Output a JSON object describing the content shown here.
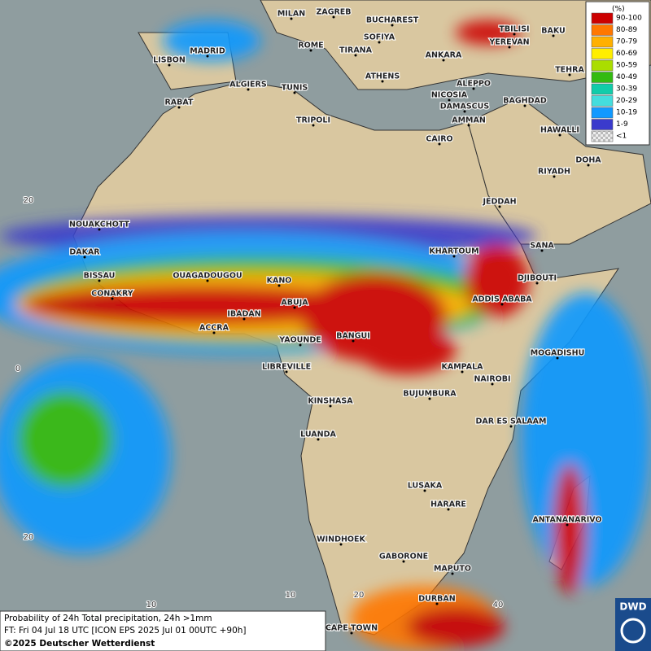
{
  "legend": {
    "unit": "(%)",
    "items": [
      {
        "label": "90-100",
        "color": "#cc0000"
      },
      {
        "label": "80-89",
        "color": "#ff7700"
      },
      {
        "label": "70-79",
        "color": "#ffb000"
      },
      {
        "label": "60-69",
        "color": "#ffee00"
      },
      {
        "label": "50-59",
        "color": "#aadd00"
      },
      {
        "label": "40-49",
        "color": "#33bb11"
      },
      {
        "label": "30-39",
        "color": "#11ccaa"
      },
      {
        "label": "20-29",
        "color": "#44dddd"
      },
      {
        "label": "10-19",
        "color": "#1199ff"
      },
      {
        "label": "1-9",
        "color": "#3a3acc"
      },
      {
        "label": "<1",
        "color": "#cccccc"
      }
    ]
  },
  "cities": [
    "MILAN",
    "ZAGREB",
    "BUCHAREST",
    "SOFIYA",
    "ROME",
    "TIRANA",
    "ANKARA",
    "TBILISI",
    "BAKU",
    "YEREVAN",
    "MADRID",
    "LISBON",
    "TEHRA",
    "ATHENS",
    "ALGIERS",
    "TUNIS",
    "ALEPPO",
    "NICOSIA",
    "RABAT",
    "BAGHDAD",
    "DAMASCUS",
    "AMMAN",
    "TRIPOLI",
    "HAWALLI",
    "CAIRO",
    "DOHA",
    "RIYADH",
    "JEDDAH",
    "NOUAKCHOTT",
    "KHARTOUM",
    "SANA",
    "DAKAR",
    "BISSAU",
    "OUAGADOUGOU",
    "KANO",
    "DJIBOUTI",
    "CONAKRY",
    "ABUJA",
    "ADDIS ABABA",
    "IBADAN",
    "ACCRA",
    "BANGUI",
    "YAOUNDE",
    "MOGADISHU",
    "LIBREVILLE",
    "KAMPALA",
    "NAIROBI",
    "KINSHASA",
    "BUJUMBURA",
    "DAR ES SALAAM",
    "LUANDA",
    "LUSAKA",
    "HARARE",
    "ANTANANARIVO",
    "WINDHOEK",
    "GABORONE",
    "MAPUTO",
    "DURBAN",
    "CAPE TOWN"
  ],
  "grid_labels": [
    "20",
    "0",
    "20",
    "10",
    "10",
    "20",
    "40"
  ],
  "footer": {
    "line1": "Probability of 24h Total precipitation, 24h >1mm",
    "line2": "FT: Fri 04 Jul 18 UTC [ICON EPS 2025 Jul 01 00UTC +90h]",
    "line3": "©2025 Deutscher Wetterdienst"
  },
  "logo": "DWD"
}
